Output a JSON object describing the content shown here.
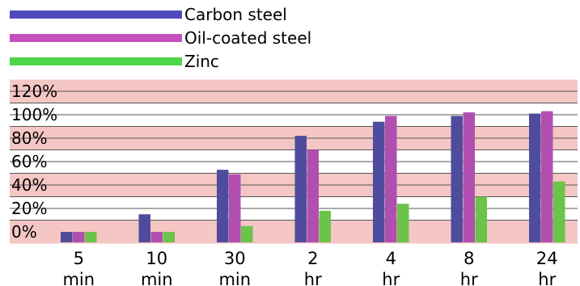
{
  "chart_data": {
    "type": "bar",
    "categories": [
      [
        "5",
        "min"
      ],
      [
        "10",
        "min"
      ],
      [
        "30",
        "min"
      ],
      [
        "2",
        "hr"
      ],
      [
        "4",
        "hr"
      ],
      [
        "8",
        "hr"
      ],
      [
        "24",
        "hr"
      ]
    ],
    "series": [
      {
        "name": "Carbon steel",
        "color": "#4f4c9e",
        "values": [
          0,
          15,
          53,
          82,
          94,
          99,
          101
        ]
      },
      {
        "name": "Oil-coated steel",
        "color": "#b14fb0",
        "values": [
          0,
          0,
          49,
          70,
          99,
          102,
          103
        ]
      },
      {
        "name": "Zinc",
        "color": "#6bc349",
        "values": [
          0,
          0,
          5,
          18,
          24,
          30,
          43
        ]
      }
    ],
    "legend_line_colors": [
      "#4b4bba",
      "#c64fc0",
      "#4fd548"
    ],
    "yticks": [
      "0%",
      "20%",
      "40%",
      "60%",
      "80%",
      "100%",
      "120%"
    ],
    "ylim": [
      -10,
      130
    ],
    "grid": true,
    "band_color": "#f4c6c4",
    "legend_position": "top-left"
  }
}
